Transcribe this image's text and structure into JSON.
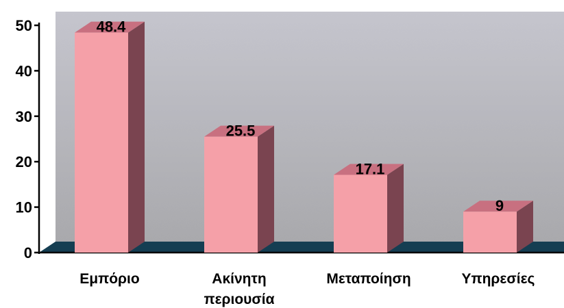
{
  "chart_data": {
    "type": "bar",
    "categories": [
      "Εμπόριο",
      "Ακίνητη περιουσία",
      "Μεταποίηση",
      "Υπηρεσίες"
    ],
    "category_lines": [
      [
        "Εμπόριο"
      ],
      [
        "Ακίνητη",
        "περιουσία"
      ],
      [
        "Μεταποίηση"
      ],
      [
        "Υπηρεσίες"
      ]
    ],
    "values": [
      48.4,
      25.5,
      17.1,
      9
    ],
    "value_labels": [
      "48.4",
      "25.5",
      "17.1",
      "9"
    ],
    "yticks": [
      0,
      10,
      20,
      30,
      40,
      50
    ],
    "ylim": [
      0,
      50
    ],
    "title": "",
    "xlabel": "",
    "ylabel": "",
    "style": "3d-column",
    "grid": false,
    "colors": {
      "bar_front": "#f5a0a8",
      "bar_top": "#c87080",
      "bar_side": "#7a4450",
      "floor": "#153e52",
      "wall_top": "#bfc0c9",
      "wall_bottom": "#a9a9ad"
    }
  }
}
